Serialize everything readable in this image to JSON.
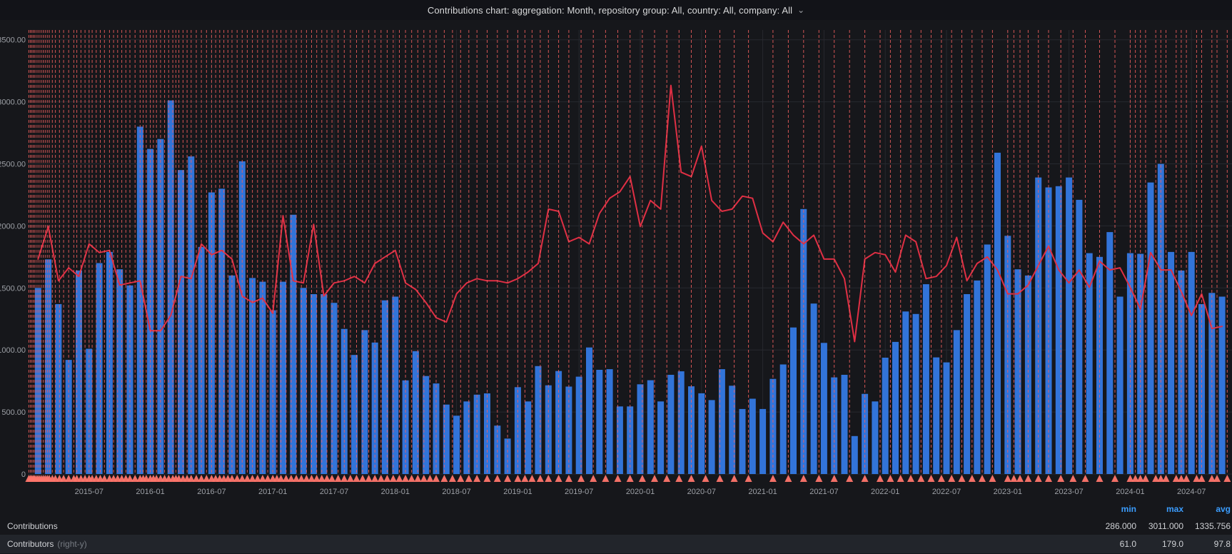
{
  "title": {
    "text": "Contributions chart: aggregation: Month, repository group: All, country: All, company: All",
    "chevron": "⌄"
  },
  "legend": {
    "headers": [
      "min",
      "max",
      "avg"
    ],
    "rows": [
      {
        "label": "Contributions",
        "suffix": "",
        "min": "286.000",
        "max": "3011.000",
        "avg": "1335.756",
        "highlight": false
      },
      {
        "label": "Contributors",
        "suffix": "(right-y)",
        "min": "61.0",
        "max": "179.0",
        "avg": "97.8",
        "highlight": true
      }
    ]
  },
  "chart_data": {
    "type": "bar",
    "subtype": "bar-with-line-overlay",
    "start_month": "2015-02",
    "x_ticks": [
      "2015-07",
      "2016-01",
      "2016-07",
      "2017-01",
      "2017-07",
      "2018-01",
      "2018-07",
      "2019-01",
      "2019-07",
      "2020-01",
      "2020-07",
      "2021-01",
      "2021-07",
      "2022-01",
      "2022-07",
      "2023-01",
      "2023-07",
      "2024-01",
      "2024-07"
    ],
    "y_left": {
      "min": 0,
      "max": 3500,
      "tick_labels": [
        "3500.00",
        "3000.00",
        "2500.00",
        "2000.00",
        "1500.00",
        "1000.00",
        "500.00",
        "0"
      ]
    },
    "y_right": {
      "min": 0,
      "max": 200,
      "visible": false,
      "left_units_per_right_unit": 17.5
    },
    "grid": true,
    "series": [
      {
        "name": "Contributions",
        "type": "bar",
        "axis": "left",
        "color": "#3274d9",
        "values": [
          1500,
          1730,
          1370,
          920,
          1640,
          1010,
          1700,
          1790,
          1650,
          1520,
          2800,
          2620,
          2700,
          3011,
          2450,
          2560,
          1830,
          2270,
          2300,
          1600,
          2520,
          1580,
          1550,
          1320,
          1550,
          2090,
          1500,
          1450,
          1450,
          1380,
          1170,
          960,
          1160,
          1060,
          1400,
          1430,
          755,
          990,
          790,
          730,
          560,
          470,
          585,
          640,
          650,
          390,
          286,
          700,
          585,
          870,
          715,
          830,
          705,
          785,
          1020,
          840,
          845,
          545,
          545,
          723,
          756,
          585,
          800,
          828,
          707,
          651,
          596,
          845,
          712,
          524,
          607,
          524,
          767,
          883,
          1181,
          2136,
          1374,
          1057,
          779,
          800,
          306,
          646,
          585,
          938,
          1065,
          1310,
          1290,
          1530,
          940,
          900,
          1160,
          1450,
          1560,
          1850,
          2590,
          1920,
          1650,
          1600,
          2390,
          2310,
          2320,
          2390,
          2210,
          1780,
          1750,
          1950,
          1430,
          1780,
          1775,
          2350,
          2500,
          1790,
          1640,
          1790,
          1370,
          1460,
          1430
        ]
      },
      {
        "name": "Contributors",
        "type": "line",
        "axis": "right",
        "color": "#e02f44",
        "values": [
          99,
          114,
          89,
          95,
          91,
          106,
          102,
          103,
          87,
          88,
          89,
          66,
          66,
          73,
          91,
          90,
          106,
          101,
          103,
          99,
          82,
          79,
          81,
          74,
          119,
          89,
          88,
          115,
          82,
          88,
          89,
          91,
          88,
          97,
          100,
          103,
          88,
          85,
          79,
          72,
          70,
          83,
          88,
          90,
          89,
          89,
          88,
          90,
          93,
          97,
          122,
          121,
          107,
          109,
          106,
          120,
          127,
          130,
          137,
          114,
          126,
          122,
          179,
          139,
          137,
          151,
          126,
          121,
          122,
          128,
          127,
          111,
          107,
          116,
          110,
          106,
          110,
          99,
          99,
          90,
          61,
          99,
          102,
          101,
          93,
          110,
          107,
          90,
          91,
          96,
          109,
          89,
          97,
          100,
          94,
          83,
          83,
          87,
          96,
          105,
          94,
          88,
          94,
          86,
          98,
          94,
          95,
          86,
          76,
          102,
          94,
          94,
          84,
          73,
          83,
          67,
          68
        ]
      }
    ],
    "annotations": {
      "style": "dashed-vertical-line-with-triangle-marker",
      "line_color": "#f55f5f",
      "marker_color": "#ff756b",
      "positions_month_index": [
        0.1,
        0.25,
        0.4,
        0.55,
        0.7,
        0.9,
        1.1,
        1.3,
        1.5,
        1.7,
        1.9,
        2.1,
        2.4,
        2.7,
        3.1,
        3.5,
        4.0,
        4.5,
        4.8,
        5.2,
        5.6,
        6.0,
        6.3,
        6.7,
        7.1,
        7.5,
        8.0,
        8.4,
        8.8,
        9.2,
        9.6,
        10.0,
        10.5,
        11.0,
        11.3,
        11.6,
        12.0,
        12.3,
        12.6,
        13.0,
        13.4,
        13.8,
        14.2,
        14.5,
        14.8,
        15.2,
        15.6,
        16.0,
        16.5,
        17.0,
        17.5,
        18.0,
        18.4,
        18.8,
        19.2,
        19.6,
        20.0,
        20.5,
        21.0,
        21.5,
        22.0,
        22.5,
        23.0,
        23.5,
        24.0,
        24.4,
        24.8,
        25.3,
        25.8,
        26.3,
        26.8,
        27.3,
        27.8,
        28.3,
        28.8,
        29.3,
        29.8,
        30.4,
        31.0,
        31.6,
        32.2,
        32.8,
        33.4,
        34.0,
        34.6,
        35.2,
        35.8,
        36.4,
        37.0,
        37.6,
        38.2,
        38.8,
        39.4,
        40.0,
        40.8,
        41.6,
        42.4,
        43.2,
        44.0,
        45.0,
        46.0,
        47.0,
        48.0,
        48.7,
        49.4,
        50.2,
        51.0,
        52.0,
        53.0,
        54.2,
        55.4,
        56.6,
        57.8,
        59.0,
        60.2,
        61.4,
        62.6,
        63.8,
        65.0,
        66.4,
        67.8,
        69.2,
        70.6,
        73.0,
        74.5,
        76.0,
        77.5,
        79.0,
        80.5,
        82.0,
        83.5,
        84.5,
        85.5,
        86.5,
        87.5,
        88.5,
        89.5,
        90.5,
        91.5,
        92.5,
        93.5,
        94.5,
        96.0,
        96.6,
        97.2,
        98.0,
        99.0,
        100.0,
        101.2,
        102.4,
        103.6,
        105.0,
        106.5,
        108.0,
        108.5,
        109.0,
        109.5,
        110.5,
        111.0,
        111.5,
        112.5,
        113.0,
        113.5,
        114.5,
        115.0,
        116.0,
        116.5,
        117.5
      ]
    },
    "colors": {
      "background": "#16171b",
      "grid": "#27292f",
      "axis_text": "#9da0a6",
      "bar": "#3274d9",
      "line": "#e02f44",
      "annotation": "#f55f5f",
      "legend_header": "#3b9dff",
      "row_highlight": "#22252b"
    }
  }
}
